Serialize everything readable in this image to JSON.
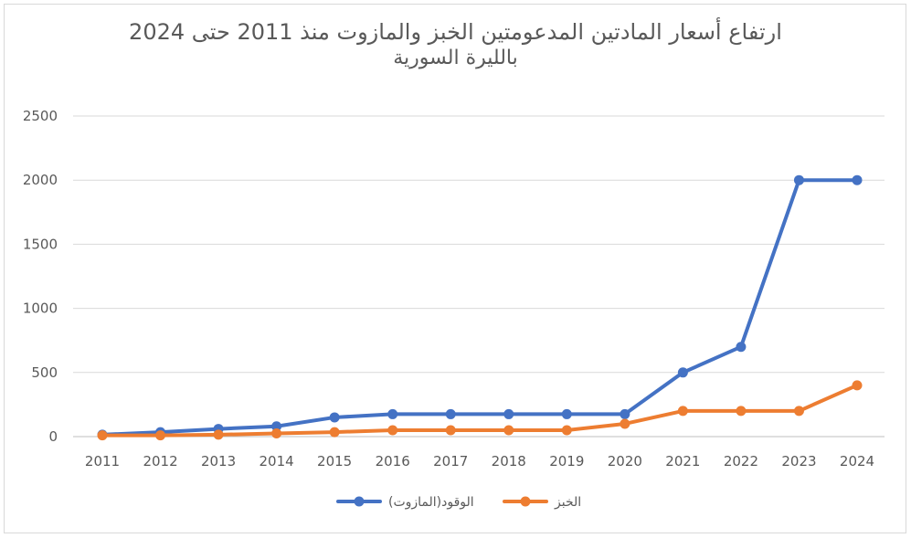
{
  "chart_data": {
    "type": "line",
    "title_line1": "ارتفاع أسعار المادتين المدعومتين الخبز والمازوت منذ 2011 حتى 2024",
    "title_line2": "بالليرة السورية",
    "xlabel": "",
    "ylabel": "",
    "x": [
      "2011",
      "2012",
      "2013",
      "2014",
      "2015",
      "2016",
      "2017",
      "2018",
      "2019",
      "2020",
      "2021",
      "2022",
      "2023",
      "2024"
    ],
    "ylim": [
      0,
      2500
    ],
    "yticks": [
      0,
      500,
      1000,
      1500,
      2000,
      2500
    ],
    "grid": true,
    "legend_position": "bottom",
    "series": [
      {
        "name": "الوقود(المازوت)",
        "color": "#4472c4",
        "values": [
          15,
          35,
          60,
          80,
          150,
          175,
          175,
          175,
          175,
          175,
          500,
          700,
          2000,
          2000
        ]
      },
      {
        "name": "الخبز",
        "color": "#ed7d31",
        "values": [
          10,
          10,
          15,
          25,
          35,
          50,
          50,
          50,
          50,
          100,
          200,
          200,
          200,
          400
        ]
      }
    ]
  }
}
